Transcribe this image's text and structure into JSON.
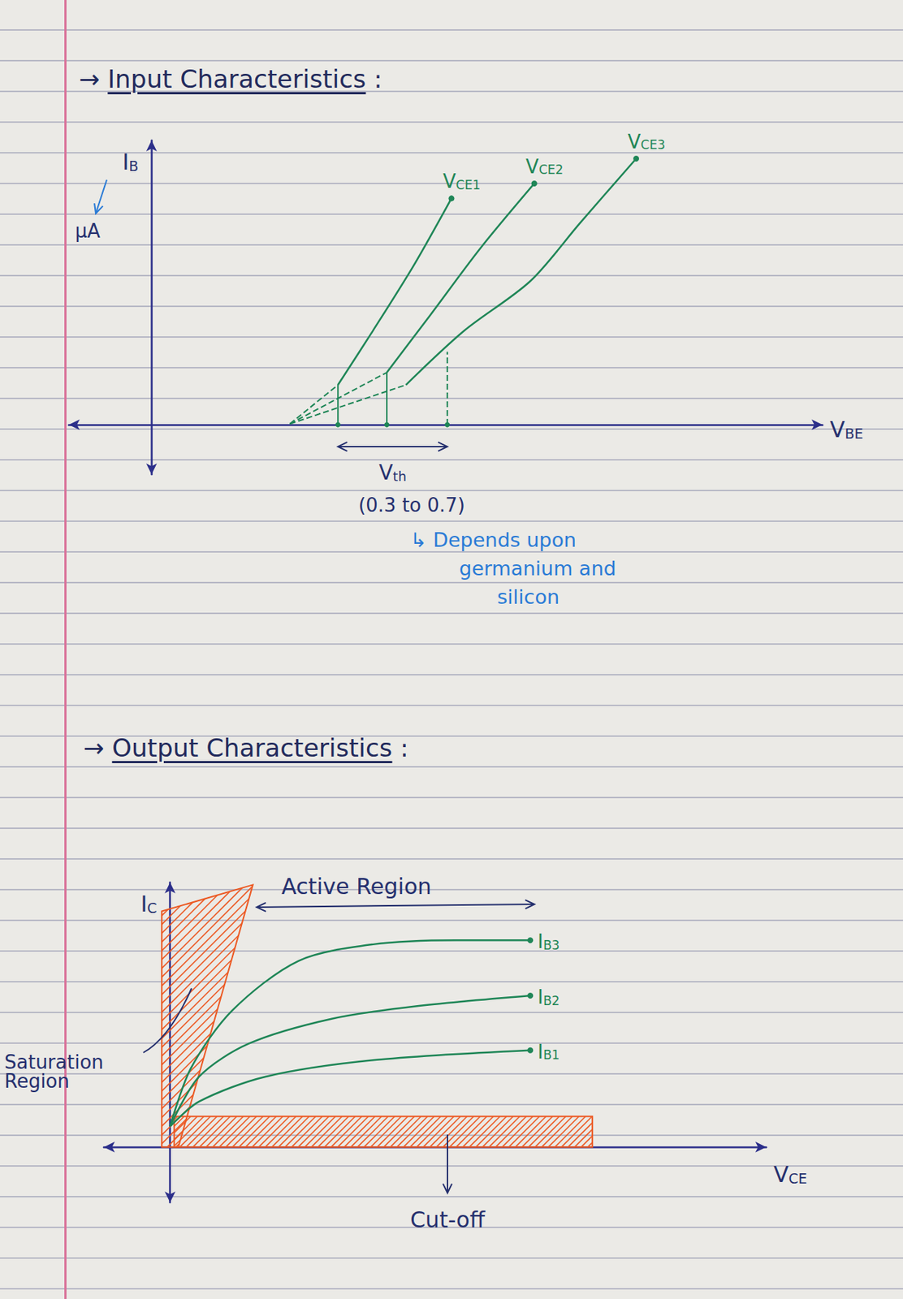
{
  "chart_data": [
    {
      "type": "line",
      "title": "→ Input Characteristics :",
      "x_label": "VBE",
      "y_label": "IB",
      "y_unit": "μA",
      "xlim": [
        -1.0,
        8.1
      ],
      "ylim": [
        -0.6,
        3.43
      ],
      "tick_labels": false,
      "grid": false,
      "series": [
        {
          "name": "VCE1",
          "color": "#1f8657",
          "marker": "circle",
          "line_style": "solid",
          "x": [
            2.25,
            2.67,
            3.17,
            3.62
          ],
          "values": [
            0.48,
            1.13,
            1.93,
            2.73
          ],
          "extrapolation": {
            "line_style": "dashed",
            "x": [
              1.67,
              2.25
            ],
            "values": [
              0.01,
              0.48
            ]
          }
        },
        {
          "name": "VCE2",
          "color": "#1f8657",
          "marker": "circle",
          "line_style": "solid",
          "x": [
            2.84,
            3.37,
            3.97,
            4.62
          ],
          "values": [
            0.63,
            1.33,
            2.13,
            2.91
          ],
          "extrapolation": {
            "line_style": "dashed",
            "x": [
              1.67,
              2.84
            ],
            "values": [
              0.01,
              0.63
            ]
          }
        },
        {
          "name": "VCE3",
          "color": "#1f8657",
          "marker": "circle",
          "line_style": "solid",
          "x": [
            3.07,
            3.77,
            4.57,
            5.17,
            5.85
          ],
          "values": [
            0.48,
            1.13,
            1.73,
            2.43,
            3.21
          ],
          "extrapolation": {
            "line_style": "dashed",
            "x": [
              1.67,
              3.07
            ],
            "values": [
              0.01,
              0.48
            ]
          }
        }
      ],
      "threshold": {
        "label": "Vth",
        "range_label": "(0.3 to 0.7)",
        "note": [
          "↳ Depends upon",
          "germanium and",
          "silicon"
        ],
        "color": "#1f8657",
        "x": [
          2.25,
          2.84,
          3.57
        ],
        "values": [
          0.48,
          0.63,
          0.88
        ]
      }
    },
    {
      "type": "line",
      "title": "→ Output Characteristics :",
      "x_label": "VCE",
      "y_label": "IC",
      "xlim": [
        -0.8,
        7.2
      ],
      "ylim": [
        -0.67,
        3.2
      ],
      "tick_labels": false,
      "grid": false,
      "series": [
        {
          "name": "IB1",
          "color": "#1f8657",
          "marker": "circle",
          "line_style": "solid",
          "x": [
            0,
            0.35,
            1.15,
            2.45,
            4.35
          ],
          "values": [
            0.25,
            0.55,
            0.85,
            1.05,
            1.17
          ]
        },
        {
          "name": "IB2",
          "color": "#1f8657",
          "marker": "circle",
          "line_style": "solid",
          "x": [
            0,
            0.35,
            0.95,
            1.95,
            2.95,
            4.35
          ],
          "values": [
            0.25,
            0.85,
            1.25,
            1.55,
            1.7,
            1.83
          ]
        },
        {
          "name": "IB3",
          "color": "#1f8657",
          "marker": "circle",
          "line_style": "solid",
          "x": [
            0,
            0.25,
            0.75,
            1.55,
            2.45,
            3.45,
            4.35
          ],
          "values": [
            0.25,
            0.95,
            1.65,
            2.25,
            2.45,
            2.5,
            2.5
          ]
        }
      ],
      "regions": [
        {
          "label": "Saturation Region",
          "color": "#ec5a24",
          "polygon": [
            [
              -0.1,
              0
            ],
            [
              -0.1,
              2.85
            ],
            [
              1.0,
              3.17
            ],
            [
              0.1,
              0
            ]
          ]
        },
        {
          "label": "Cut-off",
          "color": "#ec5a24",
          "polygon": [
            [
              0.05,
              0
            ],
            [
              0.05,
              0.37
            ],
            [
              5.1,
              0.37
            ],
            [
              5.1,
              0
            ]
          ]
        }
      ],
      "annotations": [
        "Active Region"
      ]
    }
  ]
}
